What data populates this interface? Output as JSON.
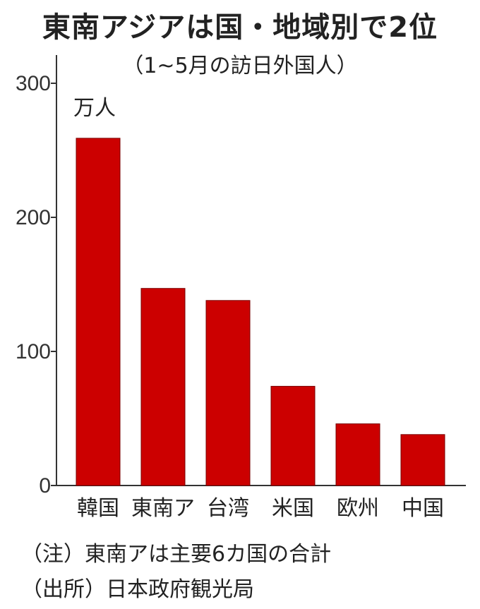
{
  "chart_data": {
    "type": "bar",
    "title": "東南アジアは国・地域別で2位",
    "subtitle": "（1~5月の訪日外国人）",
    "unit": "万人",
    "categories": [
      "韓国",
      "東南ア",
      "台湾",
      "米国",
      "欧州",
      "中国"
    ],
    "values": [
      259,
      147,
      138,
      74,
      46,
      38
    ],
    "ylim": [
      0,
      300
    ],
    "yticks": [
      0,
      100,
      200,
      300
    ],
    "bar_color": "#cc0000",
    "grid": false
  },
  "notes": {
    "note": "（注）東南アは主要6カ国の合計",
    "source": "（出所）日本政府観光局"
  }
}
